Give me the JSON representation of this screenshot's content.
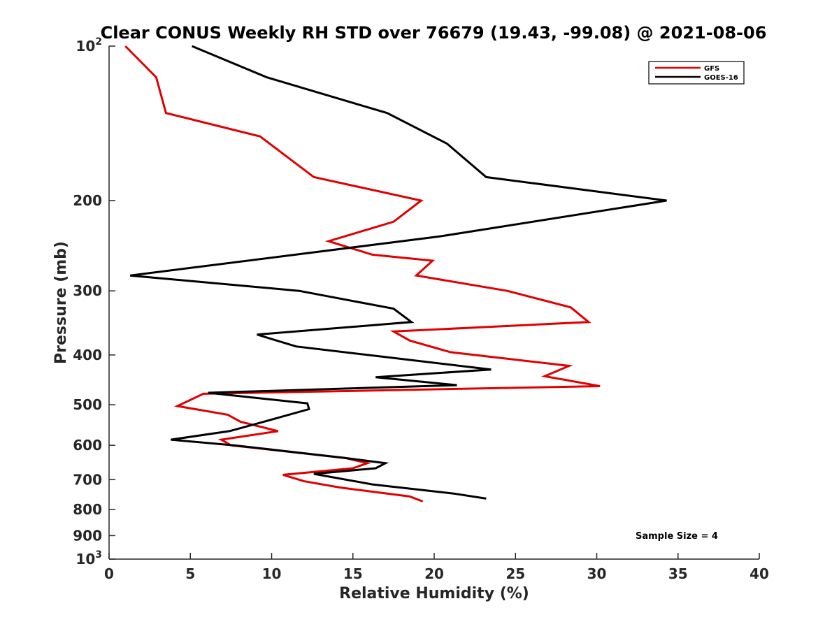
{
  "chart_data": {
    "type": "line",
    "title": "Clear CONUS Weekly RH STD over 76679 (19.43, -99.08) @ 2021-08-06",
    "xlabel": "Relative Humidity (%)",
    "ylabel": "Pressure (mb)",
    "xlim": [
      0,
      40
    ],
    "ylim": [
      100,
      1000
    ],
    "y_scale": "log",
    "y_reversed": true,
    "grid": false,
    "legend_position": "top-right",
    "x_ticks": [
      "0",
      "5",
      "10",
      "15",
      "20",
      "25",
      "30",
      "35",
      "40"
    ],
    "y_ticks": [
      {
        "value": 100,
        "base": "10",
        "exp": "2"
      },
      {
        "value": 200,
        "label": "200"
      },
      {
        "value": 300,
        "label": "300"
      },
      {
        "value": 400,
        "label": "400"
      },
      {
        "value": 500,
        "label": "500"
      },
      {
        "value": 600,
        "label": "600"
      },
      {
        "value": 700,
        "label": "700"
      },
      {
        "value": 800,
        "label": "800"
      },
      {
        "value": 900,
        "label": "900"
      },
      {
        "value": 1000,
        "base": "10",
        "exp": "3"
      }
    ],
    "annotation": "Sample Size = 4",
    "series": [
      {
        "name": "GFS",
        "color": "#e00000",
        "points": [
          [
            1.0,
            100
          ],
          [
            2.9,
            115
          ],
          [
            3.5,
            135
          ],
          [
            9.3,
            150
          ],
          [
            12.6,
            180
          ],
          [
            19.2,
            200
          ],
          [
            17.5,
            220
          ],
          [
            13.5,
            240
          ],
          [
            16.2,
            255
          ],
          [
            19.9,
            262
          ],
          [
            18.9,
            280
          ],
          [
            24.5,
            300
          ],
          [
            28.4,
            323
          ],
          [
            29.5,
            345
          ],
          [
            17.5,
            360
          ],
          [
            18.5,
            375
          ],
          [
            21.0,
            395
          ],
          [
            28.3,
            420
          ],
          [
            26.8,
            440
          ],
          [
            30.2,
            460
          ],
          [
            5.8,
            476
          ],
          [
            4.2,
            503
          ],
          [
            7.3,
            523
          ],
          [
            8.1,
            540
          ],
          [
            10.4,
            563
          ],
          [
            6.9,
            585
          ],
          [
            7.5,
            600
          ],
          [
            14.5,
            635
          ],
          [
            15.9,
            650
          ],
          [
            15.0,
            665
          ],
          [
            10.7,
            685
          ],
          [
            12.0,
            705
          ],
          [
            14.2,
            725
          ],
          [
            18.5,
            755
          ],
          [
            19.3,
            772
          ]
        ]
      },
      {
        "name": "GOES-16",
        "color": "#000000",
        "points": [
          [
            5.1,
            100
          ],
          [
            9.7,
            115
          ],
          [
            17.1,
            135
          ],
          [
            20.8,
            155
          ],
          [
            23.2,
            180
          ],
          [
            34.3,
            200
          ],
          [
            20.3,
            235
          ],
          [
            1.3,
            280
          ],
          [
            11.7,
            300
          ],
          [
            17.5,
            325
          ],
          [
            18.6,
            345
          ],
          [
            9.1,
            365
          ],
          [
            11.5,
            385
          ],
          [
            23.5,
            427
          ],
          [
            16.4,
            442
          ],
          [
            21.4,
            458
          ],
          [
            6.1,
            474
          ],
          [
            12.2,
            497
          ],
          [
            12.3,
            510
          ],
          [
            9.5,
            540
          ],
          [
            7.4,
            563
          ],
          [
            3.8,
            585
          ],
          [
            7.7,
            600
          ],
          [
            14.5,
            635
          ],
          [
            17.0,
            650
          ],
          [
            16.4,
            665
          ],
          [
            12.6,
            682
          ],
          [
            16.2,
            715
          ],
          [
            21.2,
            745
          ],
          [
            23.2,
            762
          ]
        ]
      }
    ]
  }
}
